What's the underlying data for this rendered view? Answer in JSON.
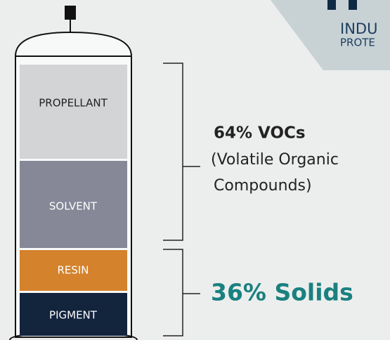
{
  "logo": {
    "line1": "INDU",
    "line2": "PROTE"
  },
  "can": {
    "layers": [
      {
        "label": "PROPELLANT"
      },
      {
        "label": "SOLVENT"
      },
      {
        "label": "RESIN"
      },
      {
        "label": "PIGMENT"
      }
    ]
  },
  "vocs": {
    "headline": "64% VOCs",
    "line1": "(Volatile Organic",
    "line2": "Compounds)"
  },
  "solids": {
    "headline": "36% Solids"
  }
}
